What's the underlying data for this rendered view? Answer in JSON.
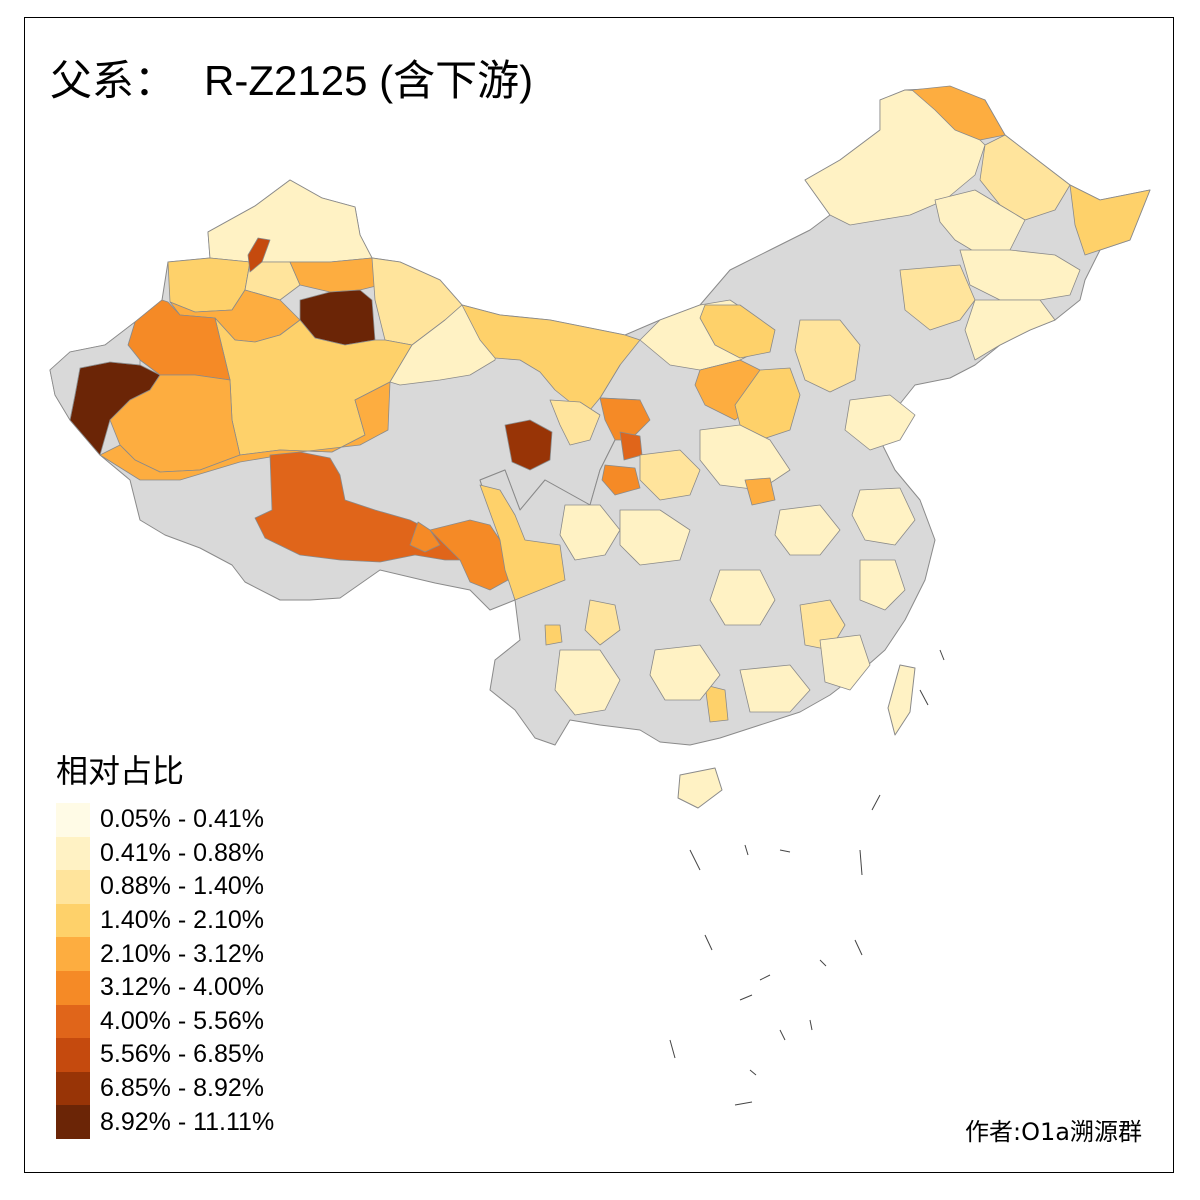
{
  "title": {
    "prefix": "父系：",
    "code": "R-Z2125 (含下游)"
  },
  "legend": {
    "title": "相对占比",
    "classes": [
      {
        "label": "0.05% - 0.41%",
        "color": "#fffbe6"
      },
      {
        "label": "0.41% - 0.88%",
        "color": "#fff2c4"
      },
      {
        "label": "0.88% - 1.40%",
        "color": "#ffe49c"
      },
      {
        "label": "1.40% - 2.10%",
        "color": "#fed16a"
      },
      {
        "label": "2.10% - 3.12%",
        "color": "#fdad40"
      },
      {
        "label": "3.12% - 4.00%",
        "color": "#f58a26"
      },
      {
        "label": "4.00% - 5.56%",
        "color": "#e0651a"
      },
      {
        "label": "5.56% - 6.85%",
        "color": "#c54a0e"
      },
      {
        "label": "6.85% - 8.92%",
        "color": "#983406"
      },
      {
        "label": "8.92% - 11.11%",
        "color": "#6b2506"
      }
    ]
  },
  "no_data_color": "#d9d9d9",
  "credit": "作者:O1a溯源群"
}
